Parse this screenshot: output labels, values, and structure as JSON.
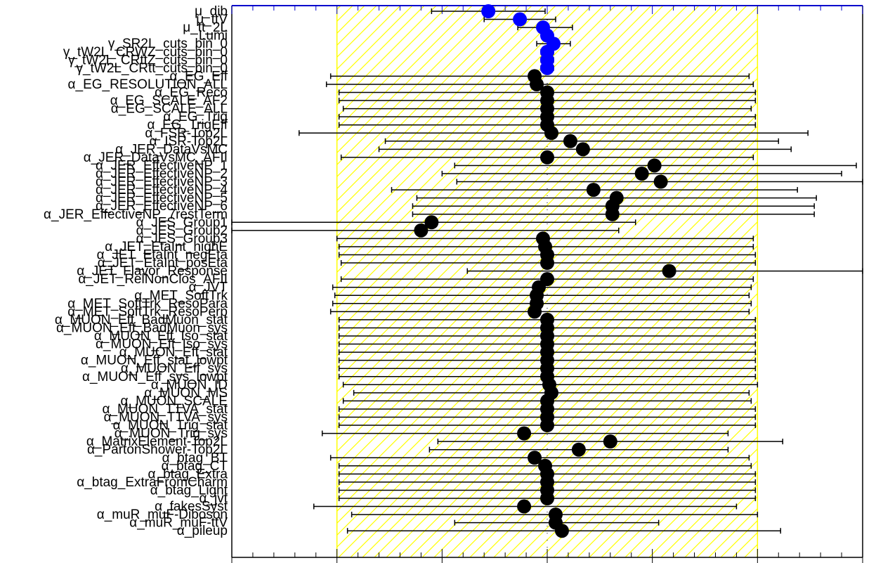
{
  "chart_data": {
    "type": "scatter",
    "title": "",
    "xlabel": "",
    "ylabel": "",
    "xlim": [
      -1.5,
      1.5
    ],
    "band": [
      -1,
      1
    ],
    "band_color": "#ffff00",
    "colors": {
      "poi": "#0000ff",
      "np": "#000000",
      "frame_top": "#0000cc"
    },
    "parameters": [
      {
        "name": "μ_dib",
        "x": -0.28,
        "lo": -0.55,
        "hi": -0.01,
        "kind": "poi"
      },
      {
        "name": "μ_ttV",
        "x": -0.13,
        "lo": -0.3,
        "hi": 0.04,
        "kind": "poi"
      },
      {
        "name": "μ_tt_2L",
        "x": -0.02,
        "lo": -0.14,
        "hi": 0.12,
        "kind": "poi"
      },
      {
        "name": "Lumi",
        "x": 0.0,
        "lo": -0.02,
        "hi": 0.02,
        "kind": "poi"
      },
      {
        "name": "γ_SR2L_cuts_bin_0",
        "x": 0.03,
        "lo": -0.05,
        "hi": 0.11,
        "kind": "poi"
      },
      {
        "name": "γ_tW2L_CRWZ_cuts_bin_0",
        "x": 0.0,
        "lo": -0.03,
        "hi": 0.03,
        "kind": "poi"
      },
      {
        "name": "γ_tW2L_CRttZ_cuts_bin_0",
        "x": 0.0,
        "lo": -0.03,
        "hi": 0.03,
        "kind": "poi"
      },
      {
        "name": "γ_tW2L_CRtt_cuts_bin_0",
        "x": 0.0,
        "lo": -0.03,
        "hi": 0.03,
        "kind": "poi"
      },
      {
        "name": "α_EG_Eff",
        "x": -0.06,
        "lo": -1.03,
        "hi": 0.96,
        "kind": "np"
      },
      {
        "name": "α_EG_RESOLUTION_ALL",
        "x": -0.05,
        "lo": -1.05,
        "hi": 0.98,
        "kind": "np"
      },
      {
        "name": "α_EG_Reco",
        "x": 0.0,
        "lo": -0.99,
        "hi": 0.99,
        "kind": "np"
      },
      {
        "name": "α_EG_SCALE_AF2",
        "x": 0.0,
        "lo": -0.99,
        "hi": 0.99,
        "kind": "np"
      },
      {
        "name": "α_EG_SCALE_ALL",
        "x": 0.0,
        "lo": -0.97,
        "hi": 0.97,
        "kind": "np"
      },
      {
        "name": "α_EG_Trig",
        "x": 0.0,
        "lo": -0.99,
        "hi": 0.99,
        "kind": "np"
      },
      {
        "name": "α_EG_TrigEff",
        "x": 0.0,
        "lo": -0.99,
        "hi": 0.99,
        "kind": "np"
      },
      {
        "name": "α_FSR-Top2L",
        "x": 0.02,
        "lo": -1.18,
        "hi": 1.24,
        "kind": "np"
      },
      {
        "name": "α_ISR-Top2L",
        "x": 0.11,
        "lo": -0.77,
        "hi": 1.1,
        "kind": "np"
      },
      {
        "name": "α_JER_DataVsMC",
        "x": 0.17,
        "lo": -0.8,
        "hi": 1.16,
        "kind": "np"
      },
      {
        "name": "α_JER_DataVsMC_AFII",
        "x": 0.0,
        "lo": -0.98,
        "hi": 0.98,
        "kind": "np"
      },
      {
        "name": "α_JER_EffectiveNP_1",
        "x": 0.51,
        "lo": -0.44,
        "hi": 1.47,
        "kind": "np"
      },
      {
        "name": "α_JER_EffectiveNP_2",
        "x": 0.45,
        "lo": -0.5,
        "hi": 1.4,
        "kind": "np"
      },
      {
        "name": "α_JER_EffectiveNP_3",
        "x": 0.54,
        "lo": -0.43,
        "hi": 1.5,
        "kind": "np"
      },
      {
        "name": "α_JER_EffectiveNP_4",
        "x": 0.22,
        "lo": -0.74,
        "hi": 1.19,
        "kind": "np"
      },
      {
        "name": "α_JER_EffectiveNP_5",
        "x": 0.33,
        "lo": -0.62,
        "hi": 1.28,
        "kind": "np"
      },
      {
        "name": "α_JER_EffectiveNP_6",
        "x": 0.31,
        "lo": -0.64,
        "hi": 1.27,
        "kind": "np"
      },
      {
        "name": "α_JER_EffectiveNP_7restTerm",
        "x": 0.31,
        "lo": -0.64,
        "hi": 1.27,
        "kind": "np"
      },
      {
        "name": "α_JES_Group1",
        "x": -0.55,
        "lo": -1.5,
        "hi": 0.42,
        "kind": "np"
      },
      {
        "name": "α_JES_Group2",
        "x": -0.6,
        "lo": -1.5,
        "hi": 0.34,
        "kind": "np"
      },
      {
        "name": "α_JES_Group3",
        "x": -0.02,
        "lo": -1.0,
        "hi": 0.98,
        "kind": "np"
      },
      {
        "name": "α_JET_EtaInt_highE",
        "x": -0.01,
        "lo": -0.99,
        "hi": 0.98,
        "kind": "np"
      },
      {
        "name": "α_JET_EtaInt_negEta",
        "x": 0.0,
        "lo": -0.99,
        "hi": 0.99,
        "kind": "np"
      },
      {
        "name": "α_JET_EtaInt_posEta",
        "x": 0.0,
        "lo": -0.98,
        "hi": 0.99,
        "kind": "np"
      },
      {
        "name": "α_JET_Flavor_Response",
        "x": 0.58,
        "lo": -0.38,
        "hi": 1.5,
        "kind": "np"
      },
      {
        "name": "α_JET_RelNonClos_AFII",
        "x": 0.0,
        "lo": -0.98,
        "hi": 0.98,
        "kind": "np"
      },
      {
        "name": "α_JVT",
        "x": -0.04,
        "lo": -1.02,
        "hi": 0.97,
        "kind": "np"
      },
      {
        "name": "α_MET_SoftTrk",
        "x": -0.05,
        "lo": -1.01,
        "hi": 0.96,
        "kind": "np"
      },
      {
        "name": "α_MET_SoftTrk_ResoPara",
        "x": -0.05,
        "lo": -1.02,
        "hi": 0.97,
        "kind": "np"
      },
      {
        "name": "α_MET_SoftTrk_ResoPerp",
        "x": -0.06,
        "lo": -1.03,
        "hi": 0.96,
        "kind": "np"
      },
      {
        "name": "α_MUON_Eff_BadMuon_stat",
        "x": 0.0,
        "lo": -0.99,
        "hi": 0.99,
        "kind": "np"
      },
      {
        "name": "α_MUON_Eff_BadMuon_sys",
        "x": 0.0,
        "lo": -0.99,
        "hi": 0.99,
        "kind": "np"
      },
      {
        "name": "α_MUON_Eff_Iso_stat",
        "x": 0.0,
        "lo": -0.99,
        "hi": 0.99,
        "kind": "np"
      },
      {
        "name": "α_MUON_Eff_Iso_sys",
        "x": 0.0,
        "lo": -0.99,
        "hi": 0.99,
        "kind": "np"
      },
      {
        "name": "α_MUON_Eff_stat",
        "x": 0.0,
        "lo": -0.99,
        "hi": 0.99,
        "kind": "np"
      },
      {
        "name": "α_MUON_Eff_stat_lowpt",
        "x": 0.0,
        "lo": -0.99,
        "hi": 0.99,
        "kind": "np"
      },
      {
        "name": "α_MUON_Eff_sys",
        "x": 0.0,
        "lo": -0.99,
        "hi": 0.99,
        "kind": "np"
      },
      {
        "name": "α_MUON_Eff_sys_lowpt",
        "x": 0.0,
        "lo": -0.99,
        "hi": 0.99,
        "kind": "np"
      },
      {
        "name": "α_MUON_ID",
        "x": 0.01,
        "lo": -0.97,
        "hi": 1.0,
        "kind": "np"
      },
      {
        "name": "α_MUON_MS",
        "x": 0.02,
        "lo": -0.92,
        "hi": 0.96,
        "kind": "np"
      },
      {
        "name": "α_MUON_SCALE",
        "x": 0.0,
        "lo": -0.97,
        "hi": 0.97,
        "kind": "np"
      },
      {
        "name": "α_MUON_TTVA_stat",
        "x": 0.0,
        "lo": -0.99,
        "hi": 0.99,
        "kind": "np"
      },
      {
        "name": "α_MUON_TTVA_sys",
        "x": 0.0,
        "lo": -0.99,
        "hi": 0.99,
        "kind": "np"
      },
      {
        "name": "α_MUON_Trig_stat",
        "x": 0.0,
        "lo": -0.99,
        "hi": 0.99,
        "kind": "np"
      },
      {
        "name": "α_MUON_Trig_sys",
        "x": -0.11,
        "lo": -1.07,
        "hi": 0.86,
        "kind": "np"
      },
      {
        "name": "α_MatrixElement-Top2L",
        "x": 0.3,
        "lo": -0.52,
        "hi": 1.12,
        "kind": "np"
      },
      {
        "name": "α_PartonShower-Top2L",
        "x": 0.15,
        "lo": -0.56,
        "hi": 0.86,
        "kind": "np"
      },
      {
        "name": "α_btag_BT",
        "x": -0.06,
        "lo": -1.03,
        "hi": 0.96,
        "kind": "np"
      },
      {
        "name": "α_btag_CT",
        "x": -0.01,
        "lo": -0.99,
        "hi": 0.97,
        "kind": "np"
      },
      {
        "name": "α_btag_Extra",
        "x": 0.0,
        "lo": -0.99,
        "hi": 0.99,
        "kind": "np"
      },
      {
        "name": "α_btag_ExtraFromCharm",
        "x": 0.0,
        "lo": -0.99,
        "hi": 0.99,
        "kind": "np"
      },
      {
        "name": "α_btag_Light",
        "x": 0.0,
        "lo": -0.99,
        "hi": 0.99,
        "kind": "np"
      },
      {
        "name": "α_jvt",
        "x": 0.0,
        "lo": -0.99,
        "hi": 0.99,
        "kind": "np"
      },
      {
        "name": "α_fakesSyst",
        "x": -0.11,
        "lo": -1.11,
        "hi": 0.9,
        "kind": "np"
      },
      {
        "name": "α_muR_muF-Diboson",
        "x": 0.04,
        "lo": -0.93,
        "hi": 1.0,
        "kind": "np"
      },
      {
        "name": "α_muR_muF-ttV",
        "x": 0.04,
        "lo": -0.44,
        "hi": 0.53,
        "kind": "np"
      },
      {
        "name": "α_pileup",
        "x": 0.07,
        "lo": -0.95,
        "hi": 1.11,
        "kind": "np"
      }
    ]
  }
}
